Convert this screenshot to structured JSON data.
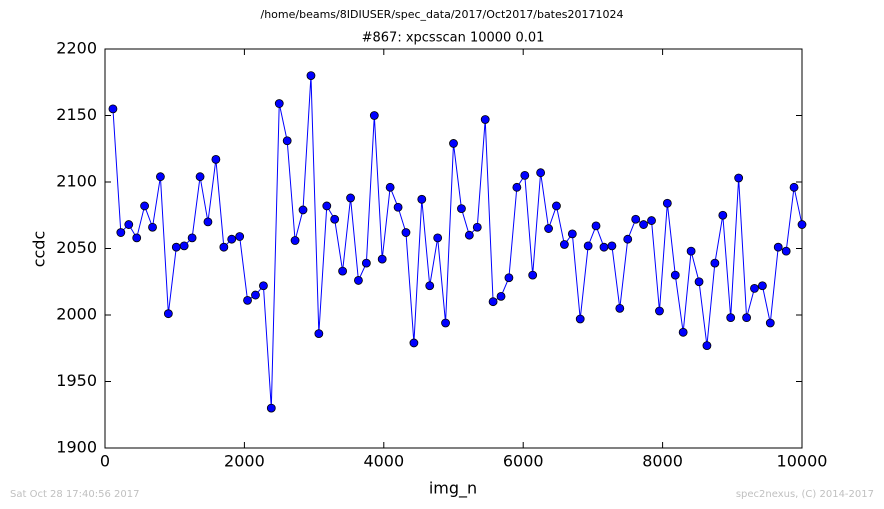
{
  "chart_data": {
    "type": "line",
    "suptitle": "/home/beams/8IDIUSER/spec_data/2017/Oct2017/bates20171024",
    "title": "#867: xpcsscan 10000 0.01",
    "x_label": "img_n",
    "y_label": "ccdc",
    "footer_left": "Sat Oct 28 17:40:56 2017",
    "footer_right": "spec2nexus, (C) 2014-2017",
    "x": [
      114,
      227,
      341,
      455,
      568,
      682,
      795,
      909,
      1023,
      1136,
      1250,
      1364,
      1477,
      1591,
      1705,
      1818,
      1932,
      2045,
      2159,
      2273,
      2386,
      2500,
      2614,
      2727,
      2841,
      2955,
      3068,
      3182,
      3295,
      3409,
      3523,
      3636,
      3750,
      3864,
      3977,
      4091,
      4205,
      4318,
      4432,
      4545,
      4659,
      4773,
      4886,
      5000,
      5114,
      5227,
      5341,
      5455,
      5568,
      5682,
      5795,
      5909,
      6023,
      6136,
      6250,
      6364,
      6477,
      6591,
      6705,
      6818,
      6932,
      7045,
      7159,
      7273,
      7386,
      7500,
      7614,
      7727,
      7841,
      7955,
      8068,
      8182,
      8295,
      8409,
      8523,
      8636,
      8750,
      8864,
      8977,
      9091,
      9205,
      9318,
      9432,
      9545,
      9659,
      9773,
      9886,
      10000
    ],
    "series": [
      {
        "name": "ccdc",
        "color": "#0000ff",
        "values": [
          2155,
          2062,
          2068,
          2058,
          2082,
          2066,
          2104,
          2001,
          2051,
          2052,
          2058,
          2104,
          2070,
          2117,
          2051,
          2057,
          2059,
          2011,
          2015,
          2022,
          1930,
          2159,
          2131,
          2056,
          2079,
          2180,
          1986,
          2082,
          2072,
          2033,
          2088,
          2026,
          2039,
          2150,
          2042,
          2096,
          2081,
          2062,
          1979,
          2087,
          2022,
          2058,
          1994,
          2129,
          2080,
          2060,
          2066,
          2147,
          2010,
          2014,
          2028,
          2096,
          2105,
          2030,
          2107,
          2065,
          2082,
          2053,
          2061,
          1997,
          2052,
          2067,
          2051,
          2052,
          2005,
          2057,
          2072,
          2068,
          2071,
          2003,
          2084,
          2030,
          1987,
          2048,
          2025,
          1977,
          2039,
          2075,
          1998,
          2103,
          1998,
          2020,
          2022,
          1994,
          2051,
          2048,
          2096,
          2068
        ]
      }
    ],
    "xlim": [
      0,
      10000
    ],
    "ylim": [
      1900,
      2200
    ],
    "xticks": [
      0,
      2000,
      4000,
      6000,
      8000,
      10000
    ],
    "yticks": [
      1900,
      1950,
      2000,
      2050,
      2100,
      2150,
      2200
    ],
    "grid": false
  }
}
